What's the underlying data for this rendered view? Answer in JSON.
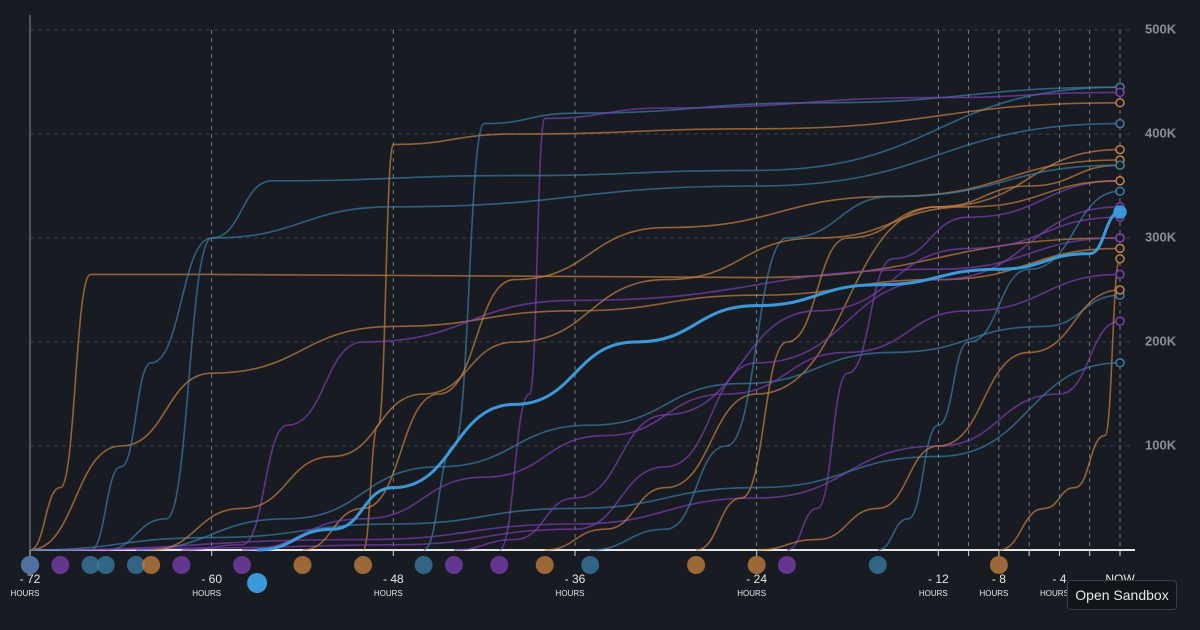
{
  "chart_data": {
    "type": "line",
    "xlim": [
      -72,
      0
    ],
    "ylim": [
      0,
      500000
    ],
    "xticks": [
      {
        "value": -72,
        "label": "- 72"
      },
      {
        "value": -60,
        "label": "- 60"
      },
      {
        "value": -48,
        "label": "- 48"
      },
      {
        "value": -36,
        "label": "- 36"
      },
      {
        "value": -24,
        "label": "- 24"
      },
      {
        "value": -12,
        "label": "- 12"
      },
      {
        "value": -10,
        "label": null
      },
      {
        "value": -8,
        "label": "- 8"
      },
      {
        "value": -6,
        "label": null
      },
      {
        "value": -4,
        "label": "- 4"
      },
      {
        "value": -2,
        "label": null
      },
      {
        "value": 0,
        "label": "NOW"
      }
    ],
    "xtick_unit": "HOURS",
    "yticks": [
      {
        "value": 100000,
        "label": "100K"
      },
      {
        "value": 200000,
        "label": "200K"
      },
      {
        "value": 300000,
        "label": "300K"
      },
      {
        "value": 400000,
        "label": "400K"
      },
      {
        "value": 500000,
        "label": "500K"
      }
    ],
    "grid": true,
    "line_opacity": 0.7,
    "series": [
      {
        "color": "#3a9ad9",
        "highlight": true,
        "x": [
          -57,
          -52,
          -48,
          -40,
          -32,
          -24,
          -16,
          -8,
          -2,
          0
        ],
        "values": [
          0,
          20000,
          60000,
          140000,
          200000,
          235000,
          255000,
          270000,
          285000,
          325000
        ]
      },
      {
        "color": "#c8823f",
        "x": [
          -72,
          -70,
          -68,
          -60,
          -24,
          0
        ],
        "values": [
          0,
          60000,
          265000,
          265000,
          262000,
          300000
        ]
      },
      {
        "color": "#3b7ea6",
        "x": [
          -67,
          -63,
          -60,
          -56,
          -40,
          -24,
          0
        ],
        "values": [
          0,
          30000,
          300000,
          355000,
          360000,
          365000,
          445000
        ]
      },
      {
        "color": "#c8823f",
        "x": [
          -50,
          -49,
          -48,
          -40,
          -24,
          0
        ],
        "values": [
          0,
          120000,
          390000,
          400000,
          405000,
          430000
        ]
      },
      {
        "color": "#3b7ea6",
        "x": [
          -46,
          -44,
          -42,
          -36,
          -20,
          0
        ],
        "values": [
          0,
          100000,
          410000,
          420000,
          430000,
          445000
        ]
      },
      {
        "color": "#7d3fb5",
        "x": [
          -41,
          -39,
          -38,
          -30,
          -12,
          0
        ],
        "values": [
          0,
          150000,
          415000,
          425000,
          435000,
          440000
        ]
      },
      {
        "color": "#c8823f",
        "x": [
          -72,
          -66,
          -60,
          -48,
          -36,
          -24,
          -12,
          0
        ],
        "values": [
          0,
          100000,
          170000,
          215000,
          230000,
          245000,
          260000,
          290000
        ]
      },
      {
        "color": "#7d3fb5",
        "x": [
          -72,
          -50,
          -36,
          -24,
          -12,
          -4,
          0
        ],
        "values": [
          0,
          10000,
          25000,
          50000,
          100000,
          150000,
          220000
        ]
      },
      {
        "color": "#c8823f",
        "x": [
          -38,
          -34,
          -30,
          -24,
          -12,
          0
        ],
        "values": [
          0,
          20000,
          60000,
          150000,
          330000,
          385000
        ]
      },
      {
        "color": "#3b7ea6",
        "x": [
          -65,
          -55,
          -45,
          -35,
          -25,
          -15,
          -5,
          0
        ],
        "values": [
          0,
          30000,
          80000,
          120000,
          160000,
          190000,
          215000,
          245000
        ]
      },
      {
        "color": "#7d3fb5",
        "x": [
          -62,
          -58,
          -55,
          -50,
          -36,
          -12,
          0
        ],
        "values": [
          0,
          5000,
          120000,
          200000,
          240000,
          270000,
          300000
        ]
      },
      {
        "color": "#c8823f",
        "x": [
          -28,
          -25,
          -22,
          -18,
          -12,
          -6,
          0
        ],
        "values": [
          0,
          50000,
          200000,
          300000,
          330000,
          350000,
          370000
        ]
      },
      {
        "color": "#7d3fb5",
        "x": [
          -22,
          -20,
          -18,
          -15,
          -10,
          0
        ],
        "values": [
          0,
          40000,
          170000,
          280000,
          320000,
          355000
        ]
      },
      {
        "color": "#3b7ea6",
        "x": [
          -16,
          -14,
          -12,
          -10,
          -6,
          0
        ],
        "values": [
          0,
          30000,
          120000,
          200000,
          270000,
          345000
        ]
      },
      {
        "color": "#c8823f",
        "x": [
          -8,
          -5,
          -3,
          -1,
          0
        ],
        "values": [
          0,
          40000,
          60000,
          110000,
          280000
        ]
      },
      {
        "color": "#7d3fb5",
        "x": [
          -70,
          -60,
          -48,
          -36,
          -30,
          -24,
          -12,
          0
        ],
        "values": [
          0,
          2000,
          5000,
          20000,
          80000,
          180000,
          260000,
          330000
        ]
      },
      {
        "color": "#3b7ea6",
        "x": [
          -72,
          -60,
          -48,
          -36,
          -24,
          -12,
          0
        ],
        "values": [
          0,
          12000,
          25000,
          40000,
          60000,
          90000,
          180000
        ]
      },
      {
        "color": "#c8823f",
        "x": [
          -54,
          -50,
          -45,
          -40,
          -30,
          -15,
          0
        ],
        "values": [
          0,
          40000,
          150000,
          260000,
          310000,
          340000,
          375000
        ]
      },
      {
        "color": "#7d3fb5",
        "x": [
          -44,
          -40,
          -36,
          -30,
          -20,
          -10,
          0
        ],
        "values": [
          0,
          10000,
          50000,
          130000,
          230000,
          290000,
          320000
        ]
      },
      {
        "color": "#3b7ea6",
        "x": [
          -35,
          -30,
          -26,
          -22,
          -15,
          0
        ],
        "values": [
          0,
          20000,
          100000,
          300000,
          340000,
          370000
        ]
      },
      {
        "color": "#c8823f",
        "x": [
          -64,
          -58,
          -52,
          -46,
          -40,
          -30,
          -20,
          -10,
          0
        ],
        "values": [
          0,
          40000,
          90000,
          150000,
          200000,
          260000,
          300000,
          330000,
          355000
        ]
      },
      {
        "color": "#7d3fb5",
        "x": [
          -58,
          -50,
          -42,
          -34,
          -26,
          -18,
          -10,
          0
        ],
        "values": [
          0,
          30000,
          70000,
          110000,
          150000,
          190000,
          230000,
          265000
        ]
      },
      {
        "color": "#c8823f",
        "x": [
          -24,
          -20,
          -16,
          -12,
          -6,
          0
        ],
        "values": [
          0,
          10000,
          40000,
          100000,
          190000,
          250000
        ]
      },
      {
        "color": "#3b7ea6",
        "x": [
          -68,
          -66,
          -64,
          -60,
          -48,
          -24,
          0
        ],
        "values": [
          0,
          80000,
          180000,
          300000,
          330000,
          350000,
          410000
        ]
      }
    ]
  },
  "button": "Open Sandbox"
}
